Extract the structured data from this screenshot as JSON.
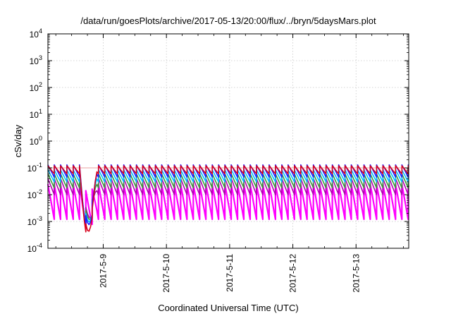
{
  "chart_data": {
    "type": "line",
    "title": "/data/run/goesPlots/archive/2017-05-13/20:00/flux/../bryn/5daysMars.plot",
    "xlabel": "Coordinated Universal Time (UTC)",
    "ylabel": "cSv/day",
    "y_scale": "log",
    "ylim": [
      0.0001,
      10000
    ],
    "xlim": [
      "2017-05-08 03:00",
      "2017-05-13 20:00"
    ],
    "y_ticks": [
      {
        "base": "10",
        "exp": "-4"
      },
      {
        "base": "10",
        "exp": "-3"
      },
      {
        "base": "10",
        "exp": "-2"
      },
      {
        "base": "10",
        "exp": "-1"
      },
      {
        "base": "10",
        "exp": "0"
      },
      {
        "base": "10",
        "exp": "1"
      },
      {
        "base": "10",
        "exp": "2"
      },
      {
        "base": "10",
        "exp": "3"
      },
      {
        "base": "10",
        "exp": "4"
      }
    ],
    "x_ticks": [
      "2017-5-9",
      "2017-5-10",
      "2017-5-11",
      "2017-5-12",
      "2017-5-13"
    ],
    "x_tick_values": [
      "2017-05-09 00:00",
      "2017-05-10 00:00",
      "2017-05-11 00:00",
      "2017-05-12 00:00",
      "2017-05-13 00:00"
    ],
    "grid": true,
    "legend": "none",
    "reference_line": {
      "y": 0.1,
      "color": "#e8a0a0"
    },
    "sawtooth": {
      "period_hours": 2.4,
      "dropout": {
        "start": "2017-05-08 15:00",
        "end": "2017-05-08 22:00",
        "minimum": 0.00015
      }
    },
    "series": [
      {
        "color": "#d8001c",
        "peak": 0.12,
        "trough": 0.06
      },
      {
        "color": "#2020ff",
        "peak": 0.13,
        "trough": 0.045
      },
      {
        "color": "#00c0ff",
        "peak": 0.085,
        "trough": 0.03
      },
      {
        "color": "#3a9a3a",
        "peak": 0.06,
        "trough": 0.018
      },
      {
        "color": "#b000b0",
        "peak": 0.04,
        "trough": 0.01
      },
      {
        "color": "#ff00ff",
        "peak": 0.025,
        "trough": 0.0012
      }
    ]
  }
}
